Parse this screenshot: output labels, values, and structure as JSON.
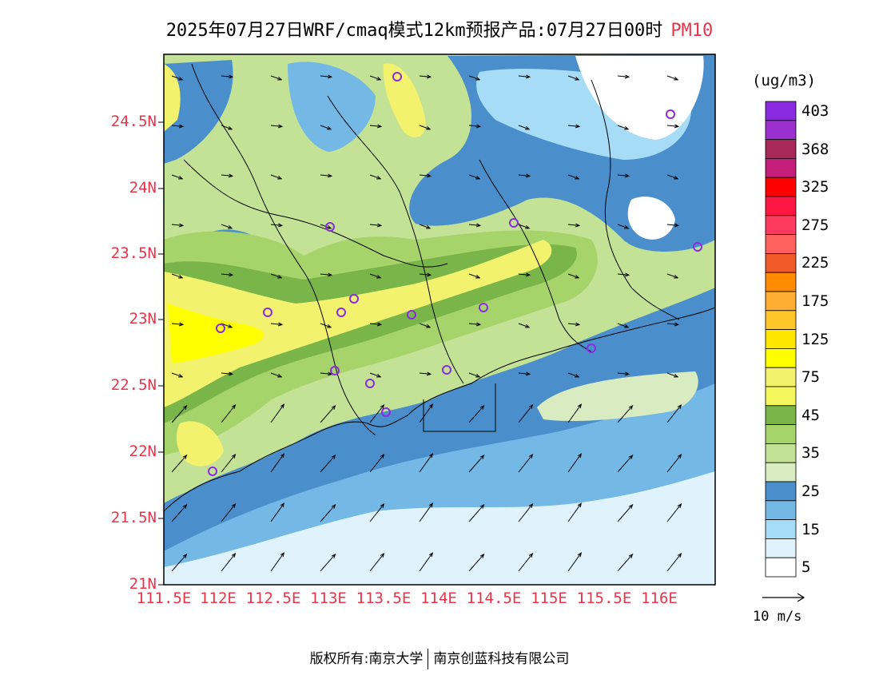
{
  "title": {
    "main": "2025年07月27日WRF/cmaq模式12km预报产品:07月27日00时",
    "variable": "PM10"
  },
  "map": {
    "lat_ticks": [
      "24.5N",
      "24N",
      "23.5N",
      "23N",
      "22.5N",
      "22N",
      "21.5N",
      "21N"
    ],
    "lon_ticks": [
      "111.5E",
      "112E",
      "112.5E",
      "113E",
      "113.5E",
      "114E",
      "114.5E",
      "115E",
      "115.5E",
      "116E"
    ],
    "colors": {
      "c5": "#e0f3fc",
      "c15": "#a6dcf6",
      "c20": "#74b8e6",
      "c25": "#4a8fcb",
      "c30": "#d9ebc1",
      "c35": "#c4e295",
      "c40": "#a7d36b",
      "c45": "#7ab54a",
      "c75": "#f2f26e",
      "c100": "#ffff00",
      "station": "#8a2be2"
    }
  },
  "colorbar": {
    "unit": "(ug/m3)",
    "levels": [
      {
        "label": "403",
        "color": "#8a2be2"
      },
      {
        "label": "",
        "color": "#9c2fd0"
      },
      {
        "label": "368",
        "color": "#a8285a"
      },
      {
        "label": "",
        "color": "#c41e7a"
      },
      {
        "label": "325",
        "color": "#ff0000"
      },
      {
        "label": "",
        "color": "#ff1744"
      },
      {
        "label": "275",
        "color": "#ff3a60"
      },
      {
        "label": "",
        "color": "#ff6060"
      },
      {
        "label": "225",
        "color": "#f05a28"
      },
      {
        "label": "",
        "color": "#ff8c00"
      },
      {
        "label": "175",
        "color": "#ffad33"
      },
      {
        "label": "",
        "color": "#ffc62a"
      },
      {
        "label": "125",
        "color": "#ffe600"
      },
      {
        "label": "",
        "color": "#ffff00"
      },
      {
        "label": "75",
        "color": "#f2f26e"
      },
      {
        "label": "",
        "color": "#f5f55c"
      },
      {
        "label": "45",
        "color": "#7ab54a"
      },
      {
        "label": "",
        "color": "#a7d36b"
      },
      {
        "label": "35",
        "color": "#c4e295"
      },
      {
        "label": "",
        "color": "#d9ebc1"
      },
      {
        "label": "25",
        "color": "#4a8fcb"
      },
      {
        "label": "",
        "color": "#74b8e6"
      },
      {
        "label": "15",
        "color": "#a6dcf6"
      },
      {
        "label": "",
        "color": "#e0f3fc"
      },
      {
        "label": "5",
        "color": "#ffffff"
      }
    ]
  },
  "wind_reference": {
    "label": "10 m/s"
  },
  "footer": {
    "left": "版权所有:南京大学",
    "right": "南京创蓝科技有限公司"
  }
}
